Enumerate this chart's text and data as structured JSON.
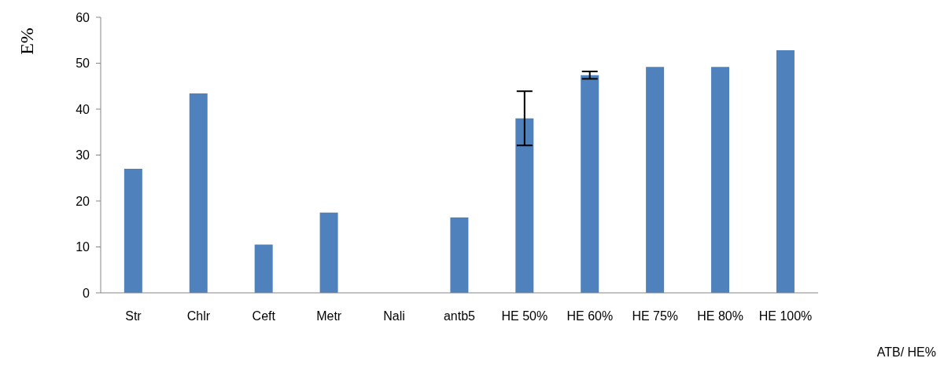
{
  "chart_data": {
    "type": "bar",
    "ylabel": "E%",
    "annotations": [
      "ATB/ HE%"
    ],
    "categories": [
      "Str",
      "Chlr",
      "Ceft",
      "Metr",
      "Nali",
      "antb5",
      "HE 50%",
      "HE 60%",
      "HE 75%",
      "HE 80%",
      "HE 100%"
    ],
    "values": [
      27,
      43.4,
      10.5,
      17.5,
      0,
      16.4,
      38,
      47.4,
      49.2,
      49.2,
      52.8
    ],
    "errors": [
      null,
      null,
      null,
      null,
      null,
      null,
      5.9,
      0.8,
      null,
      null,
      null
    ],
    "color": "#4f81bd",
    "ylim": [
      0,
      60
    ],
    "yticks": [
      0,
      10,
      20,
      30,
      40,
      50,
      60
    ],
    "grid": false
  }
}
